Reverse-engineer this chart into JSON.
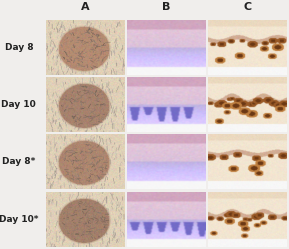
{
  "col_headers": [
    "A",
    "B",
    "C"
  ],
  "row_labels": [
    "Day 8",
    "Day 10",
    "Day 8*",
    "Day 10*"
  ],
  "background_color": "#f0eeec",
  "col_header_fontsize": 8,
  "row_label_fontsize": 6.5,
  "row_label_fontweight": "bold",
  "col_header_fontweight": "bold",
  "n_rows": 4,
  "n_cols": 3
}
